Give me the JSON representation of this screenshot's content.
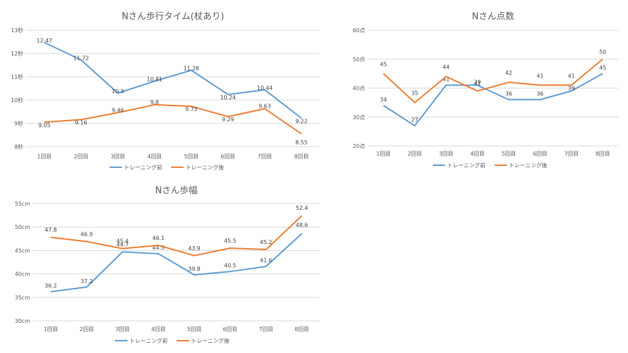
{
  "colors": {
    "before": "#5B9BD5",
    "after": "#ED7D31",
    "grid": "#D9D9D9",
    "text": "#595959"
  },
  "chart_data": [
    {
      "type": "line",
      "title": "Nさん歩行タイム(杖あり)",
      "categories": [
        "1回目",
        "2回目",
        "3回目",
        "4回目",
        "5回目",
        "6回目",
        "7回目",
        "8回目"
      ],
      "ylim": [
        8,
        13
      ],
      "yticks": [
        "8秒",
        "9秒",
        "10秒",
        "11秒",
        "12秒",
        "13秒"
      ],
      "series": [
        {
          "name": "トレーニング前",
          "values": [
            12.47,
            11.72,
            10.3,
            10.81,
            11.28,
            10.24,
            10.44,
            9.22
          ],
          "labels": [
            "12.47",
            "11.72",
            "10.3",
            "10.81",
            "11.28",
            "10.24",
            "10.44",
            "9.22"
          ]
        },
        {
          "name": "トレーニング後",
          "values": [
            9.05,
            9.16,
            9.46,
            9.8,
            9.73,
            9.29,
            9.63,
            8.55
          ],
          "labels": [
            "9.05",
            "9.16",
            "9.46",
            "9.8",
            "9.73",
            "9.29",
            "9.63",
            "8.55"
          ]
        }
      ],
      "legend": "bottom"
    },
    {
      "type": "line",
      "title": "Nさん点数",
      "categories": [
        "1回目",
        "2回目",
        "3回目",
        "4回目",
        "5回目",
        "6回目",
        "7回目",
        "8回目"
      ],
      "ylim": [
        20,
        60
      ],
      "yticks": [
        "20点",
        "30点",
        "40点",
        "50点",
        "60点"
      ],
      "series": [
        {
          "name": "トレーニング前",
          "values": [
            34,
            27,
            41,
            41,
            36,
            36,
            39,
            45
          ],
          "labels": [
            "34",
            "27",
            "41",
            "41",
            "36",
            "36",
            "39",
            "45"
          ]
        },
        {
          "name": "トレーニング後",
          "values": [
            45,
            35,
            44,
            39,
            42,
            41,
            41,
            50
          ],
          "labels": [
            "45",
            "35",
            "44",
            "39",
            "42",
            "41",
            "41",
            "50"
          ]
        }
      ],
      "legend": "bottom"
    },
    {
      "type": "line",
      "title": "Nさん歩幅",
      "categories": [
        "1回目",
        "2回目",
        "3回目",
        "4回目",
        "5回目",
        "6回目",
        "7回目",
        "8回目"
      ],
      "ylim": [
        30,
        55
      ],
      "yticks": [
        "30cm",
        "35cm",
        "40cm",
        "45cm",
        "50cm",
        "55cm"
      ],
      "series": [
        {
          "name": "トレーニング前",
          "values": [
            36.2,
            37.2,
            44.7,
            44.3,
            39.8,
            40.5,
            41.6,
            48.6
          ],
          "labels": [
            "36.2",
            "37.2",
            "44.7",
            "44.3",
            "39.8",
            "40.5",
            "41.6",
            "48.6"
          ]
        },
        {
          "name": "トレーニング後",
          "values": [
            47.8,
            46.9,
            45.4,
            46.1,
            43.9,
            45.5,
            45.2,
            52.4
          ],
          "labels": [
            "47.8",
            "46.9",
            "45.4",
            "46.1",
            "43.9",
            "45.5",
            "45.2",
            "52.4"
          ]
        }
      ],
      "legend": "bottom"
    }
  ]
}
